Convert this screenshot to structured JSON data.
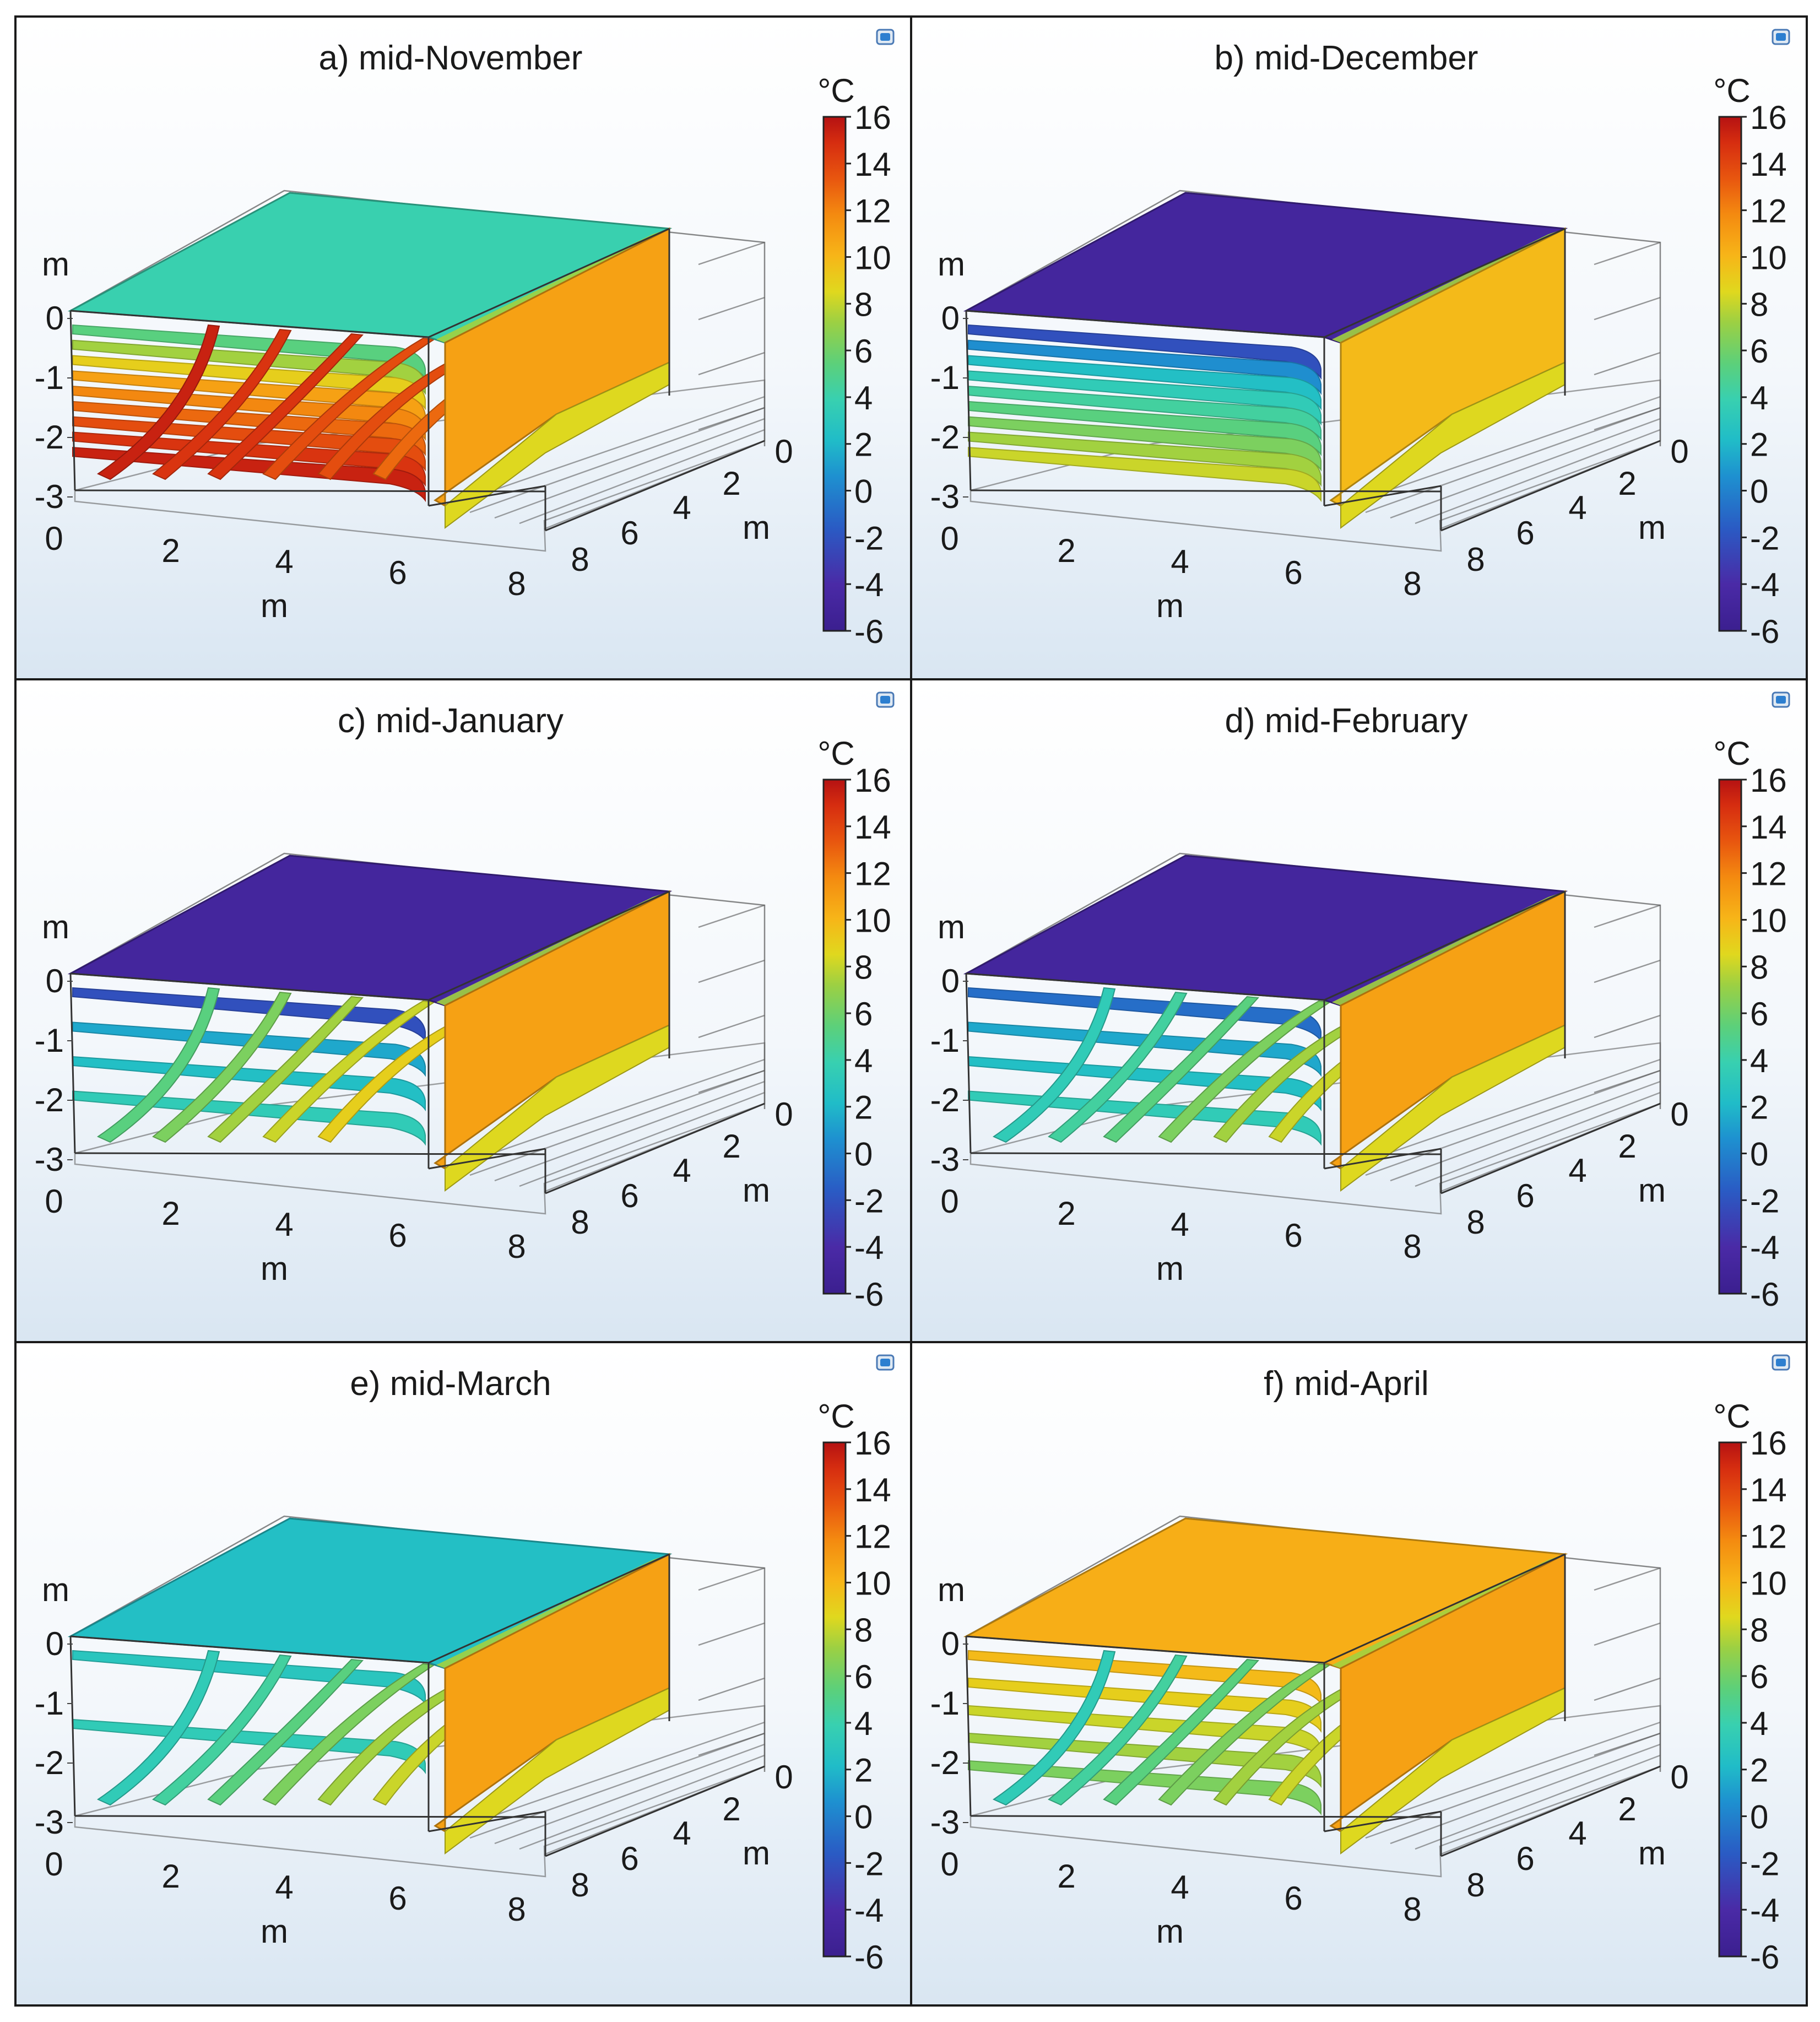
{
  "figure": {
    "description_units": "temperature isosurfaces",
    "colorbar": {
      "unit": "°C",
      "min": -6,
      "max": 16,
      "ticks": [
        "16",
        "14",
        "12",
        "10",
        "8",
        "6",
        "4",
        "2",
        "0",
        "-2",
        "-4",
        "-6"
      ],
      "colormap": [
        "#3b1f8f",
        "#4a2aa6",
        "#2a5bc4",
        "#1e90d0",
        "#20bcc8",
        "#38d0b0",
        "#5cd07a",
        "#9cd043",
        "#e0d81e",
        "#f7b518",
        "#f48a10",
        "#e8560f",
        "#d62d10",
        "#b51212"
      ]
    },
    "axis_labels": {
      "x_unit": "m",
      "y_unit": "m",
      "z_unit": "m"
    },
    "x_ticks": [
      "0",
      "2",
      "4",
      "6",
      "8"
    ],
    "y_ticks": [
      "0",
      "2",
      "4",
      "6",
      "8"
    ],
    "z_ticks": [
      "0",
      "-1",
      "-2",
      "-3"
    ]
  },
  "chart_data": [
    {
      "type": "3d-isosurface",
      "title": "a) mid-November",
      "top_surface_temp": 2.5,
      "side_wall_temp": 10,
      "layer_temps": [
        4,
        6,
        8,
        10,
        11,
        12,
        13,
        14,
        15
      ],
      "curve_temps": [
        15,
        14,
        14,
        13,
        13,
        12
      ]
    },
    {
      "type": "3d-isosurface",
      "title": "b) mid-December",
      "top_surface_temp": -5,
      "side_wall_temp": 9,
      "layer_temps": [
        -3,
        -1,
        1,
        2,
        3,
        4,
        5,
        6,
        7
      ],
      "curve_temps": []
    },
    {
      "type": "3d-isosurface",
      "title": "c) mid-January",
      "top_surface_temp": -5,
      "side_wall_temp": 10,
      "layer_temps": [
        -3,
        0,
        1,
        2
      ],
      "curve_temps": [
        4,
        5,
        6,
        7,
        8
      ]
    },
    {
      "type": "3d-isosurface",
      "title": "d) mid-February",
      "top_surface_temp": -5,
      "side_wall_temp": 10,
      "layer_temps": [
        -2,
        0,
        1,
        2
      ],
      "curve_temps": [
        2,
        3,
        4,
        5,
        6,
        7
      ]
    },
    {
      "type": "3d-isosurface",
      "title": "e) mid-March",
      "top_surface_temp": 1,
      "side_wall_temp": 10,
      "layer_temps": [
        1.5,
        2
      ],
      "curve_temps": [
        2,
        3,
        4,
        5,
        6,
        7
      ]
    },
    {
      "type": "3d-isosurface",
      "title": "f) mid-April",
      "top_surface_temp": 9.5,
      "side_wall_temp": 10,
      "layer_temps": [
        9,
        8,
        7,
        6,
        5
      ],
      "curve_temps": [
        2,
        3,
        4,
        5,
        6,
        7
      ]
    }
  ]
}
